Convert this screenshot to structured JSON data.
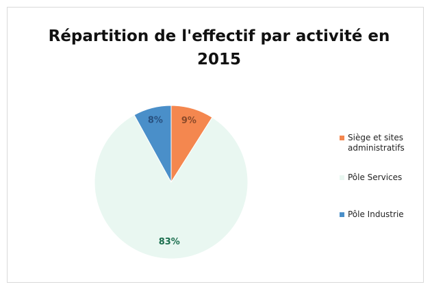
{
  "chart_data": {
    "type": "pie",
    "title": "Répartition de l'effectif par activité en 2015",
    "categories": [
      "Siège et sites administratifs",
      "Pôle Services",
      "Pôle Industrie"
    ],
    "values": [
      9,
      83,
      8
    ],
    "value_labels": [
      "9%",
      "83%",
      "8%"
    ],
    "colors": [
      "#f4874f",
      "#e9f7f1",
      "#4a8fc9"
    ],
    "label_colors": [
      "#8a4a2a",
      "#1b6e4e",
      "#28507f"
    ],
    "legend": "right"
  }
}
